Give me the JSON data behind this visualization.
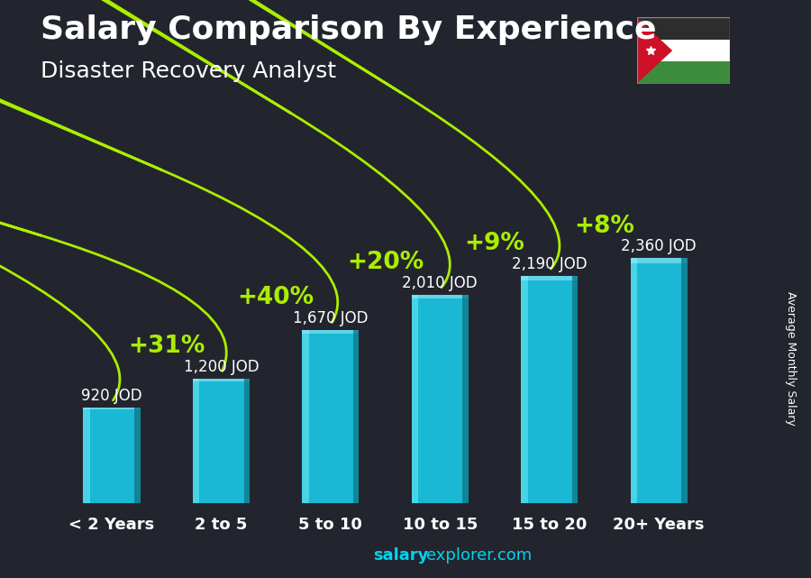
{
  "title": "Salary Comparison By Experience",
  "subtitle": "Disaster Recovery Analyst",
  "ylabel": "Average Monthly Salary",
  "watermark_bold": "salary",
  "watermark_rest": "explorer.com",
  "categories": [
    "< 2 Years",
    "2 to 5",
    "5 to 10",
    "10 to 15",
    "15 to 20",
    "20+ Years"
  ],
  "values": [
    920,
    1200,
    1670,
    2010,
    2190,
    2360
  ],
  "value_labels": [
    "920 JOD",
    "1,200 JOD",
    "1,670 JOD",
    "2,010 JOD",
    "2,190 JOD",
    "2,360 JOD"
  ],
  "pct_labels": [
    "+31%",
    "+40%",
    "+20%",
    "+9%",
    "+8%"
  ],
  "bar_color": "#1ab8d4",
  "bar_highlight": "#5de0f0",
  "bar_shadow": "#0d7a8a",
  "bg_color": "#23252e",
  "text_white": "#ffffff",
  "text_green": "#aaee00",
  "title_fontsize": 26,
  "subtitle_fontsize": 18,
  "cat_fontsize": 13,
  "val_fontsize": 12,
  "pct_fontsize": 19,
  "ylim_max": 2900,
  "bar_width": 0.52,
  "flag_black": "#2d3142",
  "flag_white": "#ffffff",
  "flag_green": "#3a7d44",
  "flag_red": "#ce1126"
}
